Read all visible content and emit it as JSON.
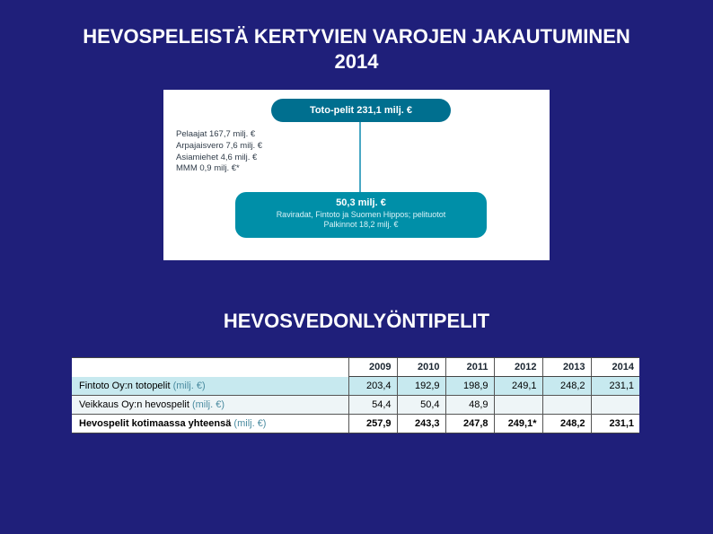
{
  "slide": {
    "background_color": "#1f1f7a",
    "text_color": "#ffffff"
  },
  "title1_line1": "HEVOSPELEISTÄ KERTYVIEN VAROJEN JAKAUTUMINEN",
  "title1_line2": "2014",
  "diagram": {
    "background_color": "#ffffff",
    "top_pill": {
      "label": "Toto-pelit 231,1 milj. €",
      "bg_color": "#006f8f",
      "text_color": "#ffffff"
    },
    "breakdown": {
      "text_color": "#313d4a",
      "items": [
        "Pelaajat 167,7 milj. €",
        "Arpajaisvero 7,6 milj. €",
        "Asiamiehet 4,6 milj. €",
        "MMM 0,9 milj. €*"
      ]
    },
    "bottom_pill": {
      "head": "50,3 milj. €",
      "line1": "Raviradat, Fintoto ja Suomen Hippos; pelituotot",
      "line2": "Palkinnot 18,2 milj. €",
      "bg_color": "#008fa8",
      "text_color": "#ffffff",
      "subtext_color": "#d9f2f7"
    },
    "connector_color": "#4aa8c4"
  },
  "title2": "HEVOSVEDONLYÖNTIPELIT",
  "table": {
    "years": [
      "2009",
      "2010",
      "2011",
      "2012",
      "2013",
      "2014"
    ],
    "rows": [
      {
        "label": "Fintoto Oy:n totopelit",
        "unit": "(milj. €)",
        "bg_color": "#c7e9ef",
        "values": [
          "203,4",
          "192,9",
          "198,9",
          "249,1",
          "248,2",
          "231,1"
        ]
      },
      {
        "label": "Veikkaus Oy:n hevospelit",
        "unit": "(milj. €)",
        "bg_color": "#eef5f7",
        "values": [
          "54,4",
          "50,4",
          "48,9",
          "",
          "",
          ""
        ]
      },
      {
        "label": "Hevospelit kotimaassa yhteensä",
        "unit": "(milj. €)",
        "bg_color": "#ffffff",
        "values": [
          "257,9",
          "243,3",
          "247,8",
          "249,1*",
          "248,2",
          "231,1"
        ]
      }
    ],
    "border_color": "#555555",
    "header_text_color": "#1a2530"
  }
}
